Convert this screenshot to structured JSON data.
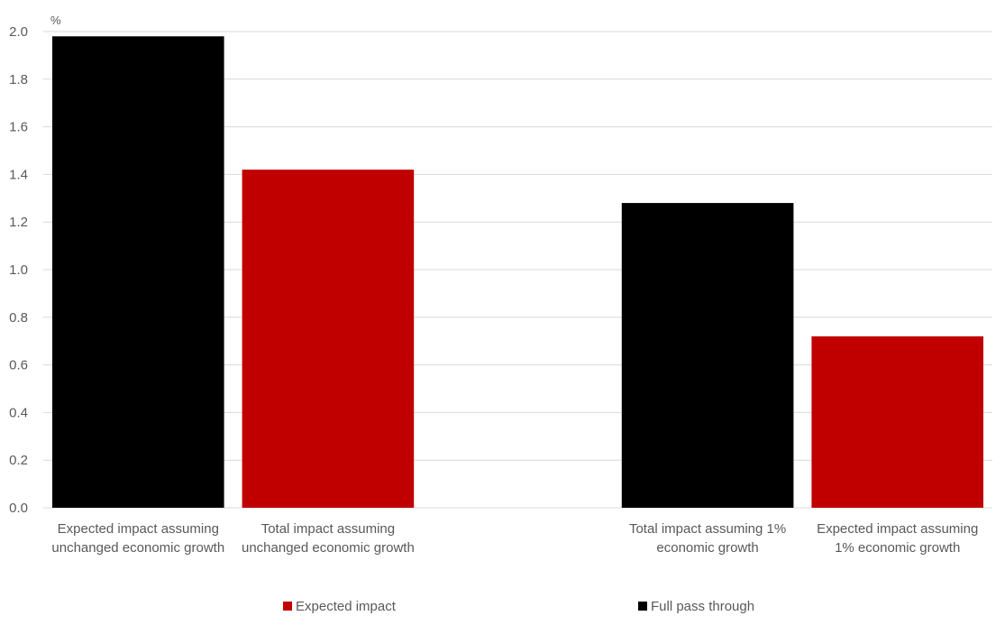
{
  "chart_data": {
    "type": "bar",
    "title": "",
    "unit_label": "%",
    "xlabel": "",
    "ylabel": "",
    "ylim": [
      0,
      2.0
    ],
    "yticks": [
      "0.0",
      "0.2",
      "0.4",
      "0.6",
      "0.8",
      "1.0",
      "1.2",
      "1.4",
      "1.6",
      "1.8",
      "2.0"
    ],
    "grid": true,
    "legend_position": "bottom",
    "categories": [
      "Expected  impact assuming unchanged economic growth",
      "Total impact assuming unchanged economic growth",
      "",
      "Total impact assuming 1% economic growth",
      "Expected impact assuming 1% economic growth"
    ],
    "bars": [
      {
        "category": "Expected  impact assuming unchanged economic growth",
        "value": 1.98,
        "series": "Full pass through"
      },
      {
        "category": "Total impact assuming unchanged economic growth",
        "value": 1.42,
        "series": "Expected impact"
      },
      {
        "category": "",
        "value": null,
        "series": null
      },
      {
        "category": "Total impact assuming 1% economic growth",
        "value": 1.28,
        "series": "Full pass through"
      },
      {
        "category": "Expected impact assuming 1% economic growth",
        "value": 0.72,
        "series": "Expected impact"
      }
    ],
    "series": [
      {
        "name": "Expected impact",
        "color": "#c00000"
      },
      {
        "name": "Full pass through",
        "color": "#000000"
      }
    ]
  }
}
